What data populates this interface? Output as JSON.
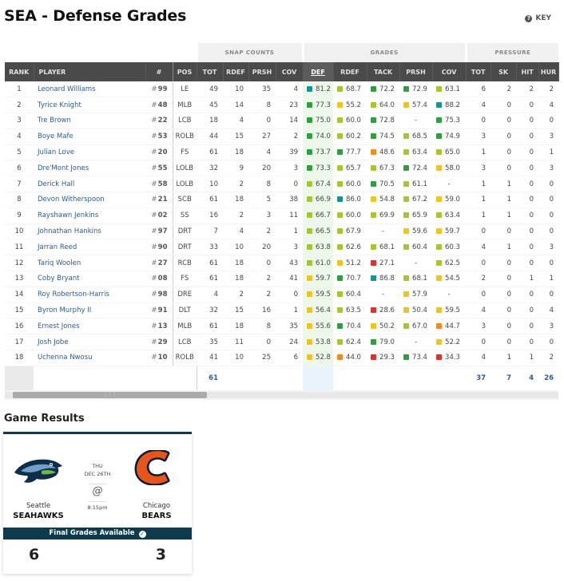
{
  "page": {
    "title": "SEA - Defense Grades",
    "key_label": "KEY"
  },
  "groups": {
    "snap": "SNAP COUNTS",
    "grades": "GRADES",
    "pressure": "PRESSURE"
  },
  "columns": {
    "rank": "RANK",
    "player": "PLAYER",
    "num": "#",
    "pos": "POS",
    "tot": "TOT",
    "rdef": "RDEF",
    "prsh": "PRSH",
    "cov": "COV",
    "g_def": "DEF",
    "g_rdef": "RDEF",
    "g_tack": "TACK",
    "g_prsh": "PRSH",
    "g_cov": "COV",
    "p_tot": "TOT",
    "p_sk": "SK",
    "p_hit": "HIT",
    "p_hur": "HUR"
  },
  "grade_colors": {
    "green": "#2e9e3e",
    "lime": "#a6c62a",
    "yellow": "#f0c419",
    "orange": "#f08c1a",
    "red": "#d9342b",
    "teal": "#14958f"
  },
  "players": [
    {
      "rank": "1",
      "name": "Leonard Williams",
      "num": "99",
      "pos": "LE",
      "tot": "49",
      "rdef": "10",
      "prsh": "35",
      "cov": "4",
      "g_def": "81.2",
      "g_rdef": "68.7",
      "g_tack": "72.2",
      "g_prsh": "72.9",
      "g_cov": "63.1",
      "p_tot": "6",
      "p_sk": "2",
      "p_hit": "2",
      "p_hur": "2"
    },
    {
      "rank": "2",
      "name": "Tyrice Knight",
      "num": "48",
      "pos": "MLB",
      "tot": "45",
      "rdef": "14",
      "prsh": "8",
      "cov": "23",
      "g_def": "77.3",
      "g_rdef": "55.2",
      "g_tack": "64.0",
      "g_prsh": "57.4",
      "g_cov": "88.2",
      "p_tot": "4",
      "p_sk": "0",
      "p_hit": "0",
      "p_hur": "4"
    },
    {
      "rank": "3",
      "name": "Tre Brown",
      "num": "22",
      "pos": "LCB",
      "tot": "18",
      "rdef": "4",
      "prsh": "0",
      "cov": "14",
      "g_def": "75.0",
      "g_rdef": "60.0",
      "g_tack": "72.8",
      "g_prsh": "-",
      "g_cov": "75.3",
      "p_tot": "0",
      "p_sk": "0",
      "p_hit": "0",
      "p_hur": "0"
    },
    {
      "rank": "4",
      "name": "Boye Mafe",
      "num": "53",
      "pos": "ROLB",
      "tot": "44",
      "rdef": "15",
      "prsh": "27",
      "cov": "2",
      "g_def": "74.0",
      "g_rdef": "60.2",
      "g_tack": "74.5",
      "g_prsh": "68.5",
      "g_cov": "74.9",
      "p_tot": "3",
      "p_sk": "0",
      "p_hit": "0",
      "p_hur": "3"
    },
    {
      "rank": "5",
      "name": "Julian Love",
      "num": "20",
      "pos": "FS",
      "tot": "61",
      "rdef": "18",
      "prsh": "4",
      "cov": "39",
      "g_def": "73.7",
      "g_rdef": "77.7",
      "g_tack": "48.6",
      "g_prsh": "63.4",
      "g_cov": "65.0",
      "p_tot": "1",
      "p_sk": "0",
      "p_hit": "0",
      "p_hur": "1"
    },
    {
      "rank": "6",
      "name": "Dre'Mont Jones",
      "num": "55",
      "pos": "LOLB",
      "tot": "32",
      "rdef": "9",
      "prsh": "20",
      "cov": "3",
      "g_def": "73.3",
      "g_rdef": "65.7",
      "g_tack": "67.3",
      "g_prsh": "72.4",
      "g_cov": "58.0",
      "p_tot": "3",
      "p_sk": "0",
      "p_hit": "0",
      "p_hur": "3"
    },
    {
      "rank": "7",
      "name": "Derick Hall",
      "num": "58",
      "pos": "LOLB",
      "tot": "10",
      "rdef": "2",
      "prsh": "8",
      "cov": "0",
      "g_def": "67.4",
      "g_rdef": "60.0",
      "g_tack": "70.5",
      "g_prsh": "61.1",
      "g_cov": "-",
      "p_tot": "1",
      "p_sk": "1",
      "p_hit": "0",
      "p_hur": "0"
    },
    {
      "rank": "8",
      "name": "Devon Witherspoon",
      "num": "21",
      "pos": "SCB",
      "tot": "61",
      "rdef": "18",
      "prsh": "5",
      "cov": "38",
      "g_def": "66.9",
      "g_rdef": "86.0",
      "g_tack": "54.8",
      "g_prsh": "67.2",
      "g_cov": "59.0",
      "p_tot": "1",
      "p_sk": "1",
      "p_hit": "0",
      "p_hur": "0"
    },
    {
      "rank": "9",
      "name": "Rayshawn Jenkins",
      "num": "02",
      "pos": "SS",
      "tot": "16",
      "rdef": "2",
      "prsh": "3",
      "cov": "11",
      "g_def": "66.7",
      "g_rdef": "60.0",
      "g_tack": "69.9",
      "g_prsh": "65.9",
      "g_cov": "63.4",
      "p_tot": "1",
      "p_sk": "1",
      "p_hit": "0",
      "p_hur": "0"
    },
    {
      "rank": "10",
      "name": "Johnathan Hankins",
      "num": "97",
      "pos": "DRT",
      "tot": "7",
      "rdef": "4",
      "prsh": "2",
      "cov": "1",
      "g_def": "66.5",
      "g_rdef": "67.9",
      "g_tack": "-",
      "g_prsh": "59.6",
      "g_cov": "59.7",
      "p_tot": "0",
      "p_sk": "0",
      "p_hit": "0",
      "p_hur": "0"
    },
    {
      "rank": "11",
      "name": "Jarran Reed",
      "num": "90",
      "pos": "DRT",
      "tot": "33",
      "rdef": "10",
      "prsh": "20",
      "cov": "3",
      "g_def": "63.8",
      "g_rdef": "62.6",
      "g_tack": "68.1",
      "g_prsh": "60.4",
      "g_cov": "60.3",
      "p_tot": "4",
      "p_sk": "1",
      "p_hit": "0",
      "p_hur": "3"
    },
    {
      "rank": "12",
      "name": "Tariq Woolen",
      "num": "27",
      "pos": "RCB",
      "tot": "61",
      "rdef": "18",
      "prsh": "0",
      "cov": "43",
      "g_def": "61.0",
      "g_rdef": "51.2",
      "g_tack": "27.1",
      "g_prsh": "-",
      "g_cov": "62.5",
      "p_tot": "0",
      "p_sk": "0",
      "p_hit": "0",
      "p_hur": "0"
    },
    {
      "rank": "13",
      "name": "Coby Bryant",
      "num": "08",
      "pos": "FS",
      "tot": "61",
      "rdef": "18",
      "prsh": "2",
      "cov": "41",
      "g_def": "59.7",
      "g_rdef": "70.7",
      "g_tack": "86.8",
      "g_prsh": "68.1",
      "g_cov": "54.5",
      "p_tot": "2",
      "p_sk": "0",
      "p_hit": "1",
      "p_hur": "1"
    },
    {
      "rank": "14",
      "name": "Roy Robertson-Harris",
      "num": "98",
      "pos": "DRE",
      "tot": "4",
      "rdef": "2",
      "prsh": "2",
      "cov": "0",
      "g_def": "59.5",
      "g_rdef": "60.4",
      "g_tack": "-",
      "g_prsh": "57.9",
      "g_cov": "-",
      "p_tot": "0",
      "p_sk": "0",
      "p_hit": "0",
      "p_hur": "0"
    },
    {
      "rank": "15",
      "name": "Byron Murphy II",
      "num": "91",
      "pos": "DLT",
      "tot": "32",
      "rdef": "15",
      "prsh": "16",
      "cov": "1",
      "g_def": "56.4",
      "g_rdef": "63.5",
      "g_tack": "28.6",
      "g_prsh": "50.4",
      "g_cov": "59.5",
      "p_tot": "4",
      "p_sk": "0",
      "p_hit": "0",
      "p_hur": "4"
    },
    {
      "rank": "16",
      "name": "Ernest Jones",
      "num": "13",
      "pos": "MLB",
      "tot": "61",
      "rdef": "18",
      "prsh": "8",
      "cov": "35",
      "g_def": "55.6",
      "g_rdef": "70.4",
      "g_tack": "50.2",
      "g_prsh": "67.0",
      "g_cov": "44.7",
      "p_tot": "3",
      "p_sk": "0",
      "p_hit": "0",
      "p_hur": "3"
    },
    {
      "rank": "17",
      "name": "Josh Jobe",
      "num": "29",
      "pos": "LCB",
      "tot": "35",
      "rdef": "11",
      "prsh": "0",
      "cov": "24",
      "g_def": "53.8",
      "g_rdef": "62.4",
      "g_tack": "79.0",
      "g_prsh": "-",
      "g_cov": "52.2",
      "p_tot": "0",
      "p_sk": "0",
      "p_hit": "0",
      "p_hur": "0"
    },
    {
      "rank": "18",
      "name": "Uchenna Nwosu",
      "num": "10",
      "pos": "ROLB",
      "tot": "41",
      "rdef": "10",
      "prsh": "25",
      "cov": "6",
      "g_def": "52.8",
      "g_rdef": "44.0",
      "g_tack": "29.3",
      "g_prsh": "73.4",
      "g_cov": "34.3",
      "p_tot": "4",
      "p_sk": "1",
      "p_hit": "1",
      "p_hur": "2"
    }
  ],
  "totals": {
    "tot": "61",
    "p_tot": "37",
    "p_sk": "7",
    "p_hit": "4",
    "p_hur": "26"
  },
  "game": {
    "section_title": "Game Results",
    "home_city": "Seattle",
    "home_name": "SEAHAWKS",
    "away_city": "Chicago",
    "away_name": "BEARS",
    "day": "THU",
    "date": "DEC 26TH",
    "time": "8:15pm",
    "at_symbol": "@",
    "final_label": "Final Grades Available",
    "home_score": "6",
    "away_score": "3"
  }
}
